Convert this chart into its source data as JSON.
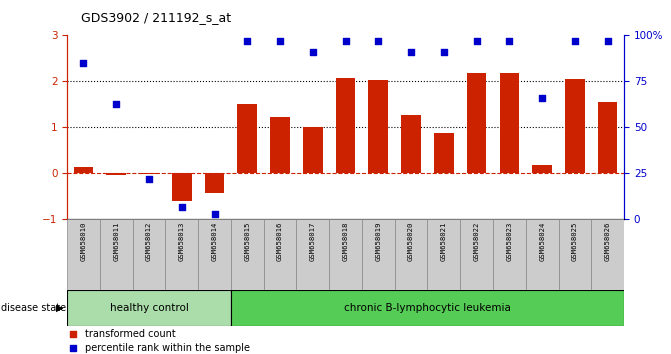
{
  "title": "GDS3902 / 211192_s_at",
  "samples": [
    "GSM658010",
    "GSM658011",
    "GSM658012",
    "GSM658013",
    "GSM658014",
    "GSM658015",
    "GSM658016",
    "GSM658017",
    "GSM658018",
    "GSM658019",
    "GSM658020",
    "GSM658021",
    "GSM658022",
    "GSM658023",
    "GSM658024",
    "GSM658025",
    "GSM658026"
  ],
  "transformed_count": [
    0.15,
    -0.03,
    -0.02,
    -0.6,
    -0.42,
    1.52,
    1.22,
    1.02,
    2.08,
    2.02,
    1.28,
    0.87,
    2.18,
    2.18,
    0.18,
    2.05,
    1.55
  ],
  "percentile_rank_pct": [
    85,
    63,
    22,
    7,
    3,
    97,
    97,
    91,
    97,
    97,
    91,
    91,
    97,
    97,
    66,
    97,
    97
  ],
  "bar_color": "#cc2200",
  "dot_color": "#0000cc",
  "ylim_left": [
    -1,
    3
  ],
  "ylim_right": [
    0,
    100
  ],
  "yticks_left": [
    -1,
    0,
    1,
    2,
    3
  ],
  "yticks_right": [
    0,
    25,
    50,
    75,
    100
  ],
  "hlines_dotted": [
    1,
    2
  ],
  "hline_dashed_val": 0,
  "hline_dashed_color": "#cc2200",
  "healthy_count": 5,
  "healthy_label": "healthy control",
  "leukemia_label": "chronic B-lymphocytic leukemia",
  "healthy_color": "#aaddaa",
  "leukemia_color": "#55cc55",
  "disease_label": "disease state",
  "legend_bar_label": "transformed count",
  "legend_dot_label": "percentile rank within the sample",
  "label_box_color": "#cccccc",
  "label_box_edge": "#888888"
}
